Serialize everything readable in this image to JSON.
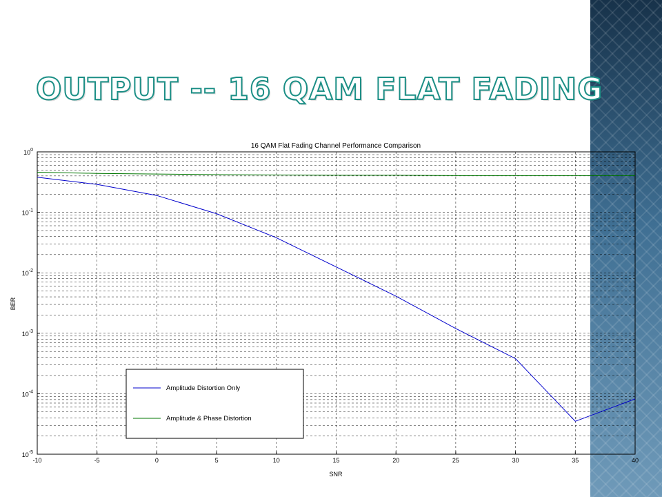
{
  "slide": {
    "title": "OUTPUT -- 16 QAM FLAT FADING",
    "accent_color": "#1c8f86",
    "band_colors": [
      "#17324a",
      "#6f9ab9"
    ]
  },
  "chart_data": {
    "type": "line",
    "title": "16 QAM Flat Fading Channel Performance Comparison",
    "xlabel": "SNR",
    "ylabel": "BER",
    "xlim": [
      -10,
      40
    ],
    "ylim": [
      1e-05,
      1
    ],
    "yscale": "log",
    "grid": true,
    "legend_position": "bottom-left",
    "x_ticks": [
      "-10",
      "-5",
      "0",
      "5",
      "10",
      "15",
      "20",
      "25",
      "30",
      "35",
      "40"
    ],
    "y_ticks": [
      {
        "base": "10",
        "exp": "0"
      },
      {
        "base": "10",
        "exp": "-1"
      },
      {
        "base": "10",
        "exp": "-2"
      },
      {
        "base": "10",
        "exp": "-3"
      },
      {
        "base": "10",
        "exp": "-4"
      },
      {
        "base": "10",
        "exp": "-5"
      }
    ],
    "series": [
      {
        "name": "Amplitude Distortion Only",
        "color": "#0000cc",
        "x": [
          -10,
          -5,
          0,
          5,
          10,
          15,
          20,
          25,
          30,
          35,
          40
        ],
        "y": [
          0.38,
          0.29,
          0.19,
          0.095,
          0.038,
          0.0125,
          0.0041,
          0.0012,
          0.00038,
          3.5e-05,
          8.2e-05
        ]
      },
      {
        "name": "Amplitude & Phase Distortion",
        "color": "#007700",
        "x": [
          -10,
          -5,
          0,
          5,
          10,
          15,
          20,
          25,
          30,
          35,
          40
        ],
        "y": [
          0.46,
          0.44,
          0.43,
          0.42,
          0.415,
          0.41,
          0.41,
          0.405,
          0.405,
          0.405,
          0.405
        ]
      }
    ]
  }
}
